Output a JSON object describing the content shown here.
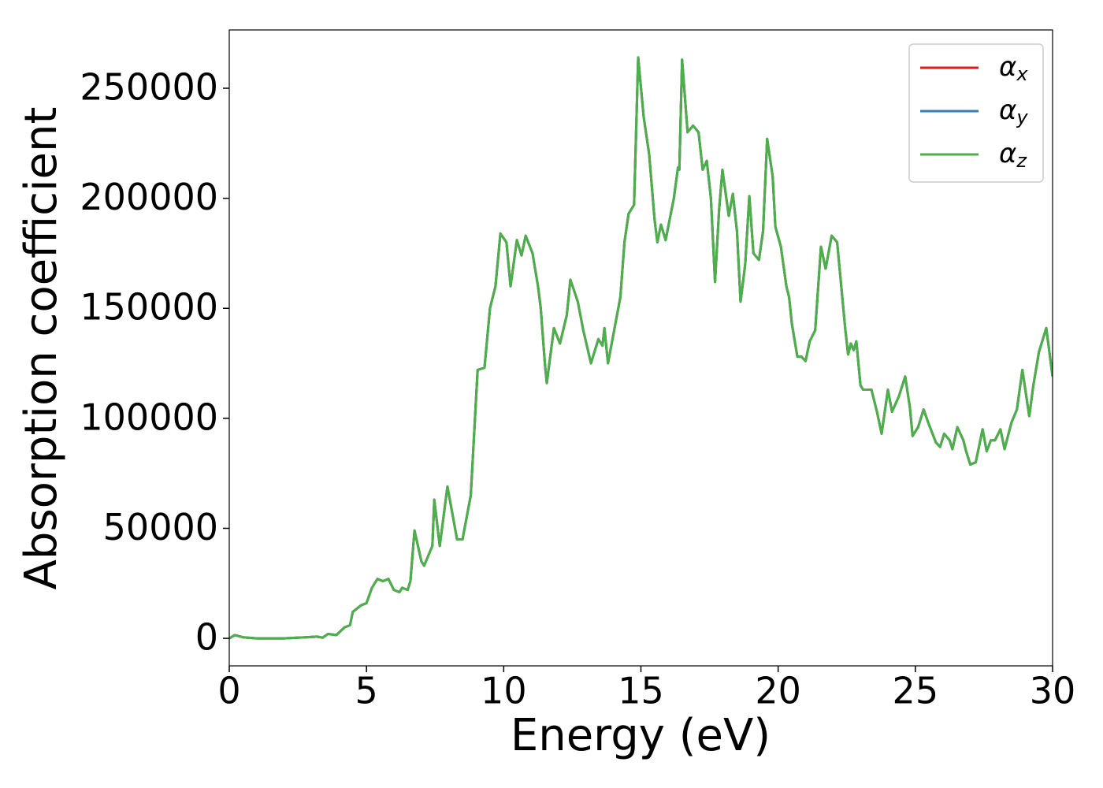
{
  "chart_data": {
    "type": "line",
    "xlabel": "Energy (eV)",
    "ylabel": "Absorption coefficient",
    "x": [
      0,
      0.2,
      0.5,
      1,
      2,
      2.8,
      3.2,
      3.4,
      3.6,
      3.9,
      4.2,
      4.4,
      4.5,
      4.8,
      5.0,
      5.2,
      5.4,
      5.6,
      5.8,
      6.0,
      6.2,
      6.3,
      6.5,
      6.6,
      6.75,
      7.0,
      7.1,
      7.3,
      7.4,
      7.47,
      7.67,
      7.95,
      8.3,
      8.5,
      8.8,
      9.05,
      9.3,
      9.5,
      9.7,
      9.88,
      10.1,
      10.25,
      10.48,
      10.65,
      10.8,
      11.05,
      11.25,
      11.35,
      11.5,
      11.57,
      11.83,
      12.05,
      12.3,
      12.43,
      12.7,
      12.9,
      13.18,
      13.45,
      13.6,
      13.67,
      13.8,
      14.1,
      14.25,
      14.4,
      14.55,
      14.75,
      14.9,
      15.1,
      15.3,
      15.5,
      15.6,
      15.73,
      15.9,
      16.2,
      16.35,
      16.4,
      16.5,
      16.7,
      16.9,
      17.1,
      17.25,
      17.4,
      17.55,
      17.7,
      17.85,
      17.97,
      18.2,
      18.35,
      18.5,
      18.63,
      18.8,
      18.95,
      19.1,
      19.3,
      19.45,
      19.6,
      19.8,
      19.9,
      20.1,
      20.3,
      20.4,
      20.5,
      20.7,
      20.85,
      21.0,
      21.15,
      21.35,
      21.56,
      21.73,
      21.95,
      22.15,
      22.3,
      22.45,
      22.55,
      22.65,
      22.75,
      22.85,
      23.0,
      23.1,
      23.4,
      23.6,
      23.77,
      24.0,
      24.15,
      24.4,
      24.63,
      24.8,
      24.9,
      25.1,
      25.3,
      25.5,
      25.75,
      25.9,
      26.05,
      26.25,
      26.35,
      26.53,
      26.75,
      26.85,
      27.0,
      27.2,
      27.45,
      27.6,
      27.75,
      27.9,
      28.1,
      28.25,
      28.5,
      28.7,
      28.9,
      29.15,
      29.3,
      29.5,
      29.77,
      30
    ],
    "series": [
      {
        "name": "αx",
        "color": "#e41a1c",
        "values": [
          0,
          1500,
          500,
          0,
          0,
          500,
          800,
          300,
          2000,
          1500,
          5000,
          6000,
          12000,
          15000,
          16000,
          23000,
          27000,
          26000,
          27000,
          22000,
          21000,
          23000,
          22000,
          26000,
          49000,
          35000,
          33000,
          39000,
          42000,
          63000,
          42000,
          69000,
          45000,
          45000,
          65000,
          122000,
          123000,
          150000,
          160000,
          184000,
          180000,
          160000,
          181000,
          174000,
          183000,
          175000,
          160000,
          150000,
          125000,
          116000,
          141000,
          134000,
          147000,
          163000,
          153000,
          140000,
          125000,
          136000,
          133000,
          141000,
          125000,
          145000,
          155000,
          180000,
          193000,
          197000,
          264000,
          237000,
          220000,
          190000,
          180000,
          188000,
          181000,
          200000,
          214000,
          213000,
          263000,
          230000,
          233000,
          230000,
          213000,
          217000,
          200000,
          162000,
          195000,
          213000,
          192000,
          202000,
          185000,
          153000,
          170000,
          201000,
          175000,
          172000,
          185000,
          227000,
          210000,
          187000,
          178000,
          160000,
          155000,
          143000,
          128000,
          128000,
          126000,
          135000,
          140000,
          178000,
          168000,
          183000,
          180000,
          160000,
          140000,
          129000,
          134000,
          131000,
          135000,
          115000,
          113000,
          113000,
          103000,
          93000,
          113000,
          103000,
          110000,
          119000,
          105000,
          92000,
          96000,
          104000,
          97000,
          89000,
          87000,
          93000,
          90000,
          86000,
          96000,
          90000,
          85000,
          79000,
          80000,
          95000,
          85000,
          90000,
          90000,
          95000,
          86000,
          98000,
          104000,
          122000,
          101000,
          115000,
          130000,
          141000,
          119000
        ]
      },
      {
        "name": "αy",
        "color": "#377eb8",
        "values": [
          0,
          1500,
          500,
          0,
          0,
          500,
          800,
          300,
          2000,
          1500,
          5000,
          6000,
          12000,
          15000,
          16000,
          23000,
          27000,
          26000,
          27000,
          22000,
          21000,
          23000,
          22000,
          26000,
          49000,
          35000,
          33000,
          39000,
          42000,
          63000,
          42000,
          69000,
          45000,
          45000,
          65000,
          122000,
          123000,
          150000,
          160000,
          184000,
          180000,
          160000,
          181000,
          174000,
          183000,
          175000,
          160000,
          150000,
          125000,
          116000,
          141000,
          134000,
          147000,
          163000,
          153000,
          140000,
          125000,
          136000,
          133000,
          141000,
          125000,
          145000,
          155000,
          180000,
          193000,
          197000,
          264000,
          237000,
          220000,
          190000,
          180000,
          188000,
          181000,
          200000,
          214000,
          213000,
          263000,
          230000,
          233000,
          230000,
          213000,
          217000,
          200000,
          162000,
          195000,
          213000,
          192000,
          202000,
          185000,
          153000,
          170000,
          201000,
          175000,
          172000,
          185000,
          227000,
          210000,
          187000,
          178000,
          160000,
          155000,
          143000,
          128000,
          128000,
          126000,
          135000,
          140000,
          178000,
          168000,
          183000,
          180000,
          160000,
          140000,
          129000,
          134000,
          131000,
          135000,
          115000,
          113000,
          113000,
          103000,
          93000,
          113000,
          103000,
          110000,
          119000,
          105000,
          92000,
          96000,
          104000,
          97000,
          89000,
          87000,
          93000,
          90000,
          86000,
          96000,
          90000,
          85000,
          79000,
          80000,
          95000,
          85000,
          90000,
          90000,
          95000,
          86000,
          98000,
          104000,
          122000,
          101000,
          115000,
          130000,
          141000,
          119000
        ]
      },
      {
        "name": "αz",
        "color": "#4daf4a",
        "values": [
          0,
          1500,
          500,
          0,
          0,
          500,
          800,
          300,
          2000,
          1500,
          5000,
          6000,
          12000,
          15000,
          16000,
          23000,
          27000,
          26000,
          27000,
          22000,
          21000,
          23000,
          22000,
          26000,
          49000,
          35000,
          33000,
          39000,
          42000,
          63000,
          42000,
          69000,
          45000,
          45000,
          65000,
          122000,
          123000,
          150000,
          160000,
          184000,
          180000,
          160000,
          181000,
          174000,
          183000,
          175000,
          160000,
          150000,
          125000,
          116000,
          141000,
          134000,
          147000,
          163000,
          153000,
          140000,
          125000,
          136000,
          133000,
          141000,
          125000,
          145000,
          155000,
          180000,
          193000,
          197000,
          264000,
          237000,
          220000,
          190000,
          180000,
          188000,
          181000,
          200000,
          214000,
          213000,
          263000,
          230000,
          233000,
          230000,
          213000,
          217000,
          200000,
          162000,
          195000,
          213000,
          192000,
          202000,
          185000,
          153000,
          170000,
          201000,
          175000,
          172000,
          185000,
          227000,
          210000,
          187000,
          178000,
          160000,
          155000,
          143000,
          128000,
          128000,
          126000,
          135000,
          140000,
          178000,
          168000,
          183000,
          180000,
          160000,
          140000,
          129000,
          134000,
          131000,
          135000,
          115000,
          113000,
          113000,
          103000,
          93000,
          113000,
          103000,
          110000,
          119000,
          105000,
          92000,
          96000,
          104000,
          97000,
          89000,
          87000,
          93000,
          90000,
          86000,
          96000,
          90000,
          85000,
          79000,
          80000,
          95000,
          85000,
          90000,
          90000,
          95000,
          86000,
          98000,
          104000,
          122000,
          101000,
          115000,
          130000,
          141000,
          119000
        ]
      }
    ],
    "xlim": [
      0,
      30
    ],
    "xticks": [
      0,
      5,
      10,
      15,
      20,
      25,
      30
    ],
    "ylim": [
      -12500,
      276500
    ],
    "yticks": [
      0,
      50000,
      100000,
      150000,
      200000,
      250000
    ],
    "legend": "upper right",
    "grid": false
  }
}
